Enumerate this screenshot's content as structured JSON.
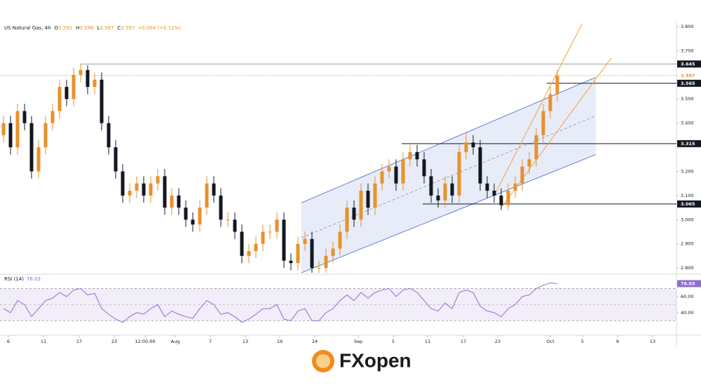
{
  "chart_data": {
    "type": "candlestick",
    "header": {
      "symbol": "US Natural Gas, 4h",
      "ohlc": [
        {
          "key": "O",
          "value": "3.592"
        },
        {
          "key": "H",
          "value": "3.598"
        },
        {
          "key": "L",
          "value": "3.587"
        },
        {
          "key": "C",
          "value": "3.597"
        }
      ],
      "change": "+0.004 (+0.11%)"
    },
    "up_color": "#e8912b",
    "down_color": "#131722",
    "xlim": [
      0,
      96.5
    ],
    "xticks": [
      {
        "value": 1.2,
        "label": "6"
      },
      {
        "value": 6.2,
        "label": "11"
      },
      {
        "value": 11.3,
        "label": "17"
      },
      {
        "value": 16.3,
        "label": "23"
      },
      {
        "value": 20.7,
        "label": "12:00:00"
      },
      {
        "value": 25,
        "label": "Aug"
      },
      {
        "value": 30,
        "label": "7"
      },
      {
        "value": 35,
        "label": "13"
      },
      {
        "value": 39.9,
        "label": "19"
      },
      {
        "value": 44.9,
        "label": "24"
      },
      {
        "value": 51.1,
        "label": "Sep"
      },
      {
        "value": 56.1,
        "label": "5"
      },
      {
        "value": 61,
        "label": "11"
      },
      {
        "value": 66.1,
        "label": "17"
      },
      {
        "value": 71,
        "label": "23"
      },
      {
        "value": 78.5,
        "label": "Oct"
      },
      {
        "value": 83.1,
        "label": "5"
      },
      {
        "value": 88.1,
        "label": "9"
      },
      {
        "value": 93.1,
        "label": "13"
      }
    ],
    "ylim": [
      2.777,
      3.823
    ],
    "yticks": [
      {
        "value": 3.8,
        "label": "3.800"
      },
      {
        "value": 3.7,
        "label": "3.700"
      },
      {
        "value": 3.5,
        "label": "3.500"
      },
      {
        "value": 3.4,
        "label": "3.400"
      },
      {
        "value": 3.2,
        "label": "3.200"
      },
      {
        "value": 3.1,
        "label": "3.100"
      },
      {
        "value": 3.0,
        "label": "3.000"
      },
      {
        "value": 2.9,
        "label": "2.900"
      },
      {
        "value": 2.8,
        "label": "2.800"
      }
    ],
    "candles": [
      [
        3.35,
        3.43,
        3.32,
        3.4
      ],
      [
        3.4,
        3.43,
        3.27,
        3.3
      ],
      [
        3.3,
        3.48,
        3.27,
        3.45
      ],
      [
        3.45,
        3.48,
        3.37,
        3.4
      ],
      [
        3.4,
        3.43,
        3.17,
        3.2
      ],
      [
        3.2,
        3.33,
        3.17,
        3.3
      ],
      [
        3.3,
        3.43,
        3.27,
        3.4
      ],
      [
        3.4,
        3.48,
        3.37,
        3.45
      ],
      [
        3.45,
        3.58,
        3.42,
        3.55
      ],
      [
        3.55,
        3.58,
        3.47,
        3.5
      ],
      [
        3.5,
        3.63,
        3.47,
        3.6
      ],
      [
        3.6,
        3.645,
        3.57,
        3.62
      ],
      [
        3.62,
        3.64,
        3.52,
        3.55
      ],
      [
        3.55,
        3.61,
        3.52,
        3.58
      ],
      [
        3.58,
        3.61,
        3.37,
        3.4
      ],
      [
        3.4,
        3.43,
        3.27,
        3.3
      ],
      [
        3.3,
        3.33,
        3.17,
        3.2
      ],
      [
        3.2,
        3.23,
        3.07,
        3.1
      ],
      [
        3.1,
        3.15,
        3.07,
        3.12
      ],
      [
        3.12,
        3.18,
        3.09,
        3.15
      ],
      [
        3.15,
        3.18,
        3.07,
        3.1
      ],
      [
        3.1,
        3.18,
        3.07,
        3.15
      ],
      [
        3.15,
        3.21,
        3.12,
        3.18
      ],
      [
        3.18,
        3.21,
        3.02,
        3.05
      ],
      [
        3.05,
        3.13,
        3.02,
        3.1
      ],
      [
        3.1,
        3.13,
        3.02,
        3.05
      ],
      [
        3.05,
        3.08,
        2.97,
        3.0
      ],
      [
        3.0,
        3.03,
        2.95,
        2.98
      ],
      [
        2.98,
        3.08,
        2.95,
        3.05
      ],
      [
        3.05,
        3.18,
        3.02,
        3.15
      ],
      [
        3.15,
        3.18,
        3.07,
        3.1
      ],
      [
        3.1,
        3.13,
        2.97,
        3.0
      ],
      [
        3.0,
        3.03,
        2.97,
        3.0
      ],
      [
        3.0,
        3.03,
        2.92,
        2.95
      ],
      [
        2.95,
        2.98,
        2.82,
        2.85
      ],
      [
        2.85,
        2.9,
        2.82,
        2.87
      ],
      [
        2.87,
        2.93,
        2.84,
        2.9
      ],
      [
        2.9,
        2.98,
        2.87,
        2.95
      ],
      [
        2.95,
        2.98,
        2.92,
        2.95
      ],
      [
        2.95,
        3.03,
        2.92,
        3.0
      ],
      [
        3.0,
        3.03,
        2.8,
        2.83
      ],
      [
        2.83,
        2.86,
        2.79,
        2.82
      ],
      [
        2.82,
        2.93,
        2.79,
        2.9
      ],
      [
        2.9,
        2.95,
        2.87,
        2.92
      ],
      [
        2.92,
        2.95,
        2.78,
        2.8
      ],
      [
        2.8,
        2.83,
        2.78,
        2.8
      ],
      [
        2.8,
        2.88,
        2.78,
        2.85
      ],
      [
        2.85,
        2.91,
        2.82,
        2.88
      ],
      [
        2.88,
        2.98,
        2.85,
        2.95
      ],
      [
        2.95,
        3.08,
        2.92,
        3.05
      ],
      [
        3.05,
        3.08,
        2.97,
        3.0
      ],
      [
        3.0,
        3.15,
        2.97,
        3.12
      ],
      [
        3.12,
        3.15,
        3.02,
        3.05
      ],
      [
        3.05,
        3.18,
        3.02,
        3.15
      ],
      [
        3.15,
        3.23,
        3.12,
        3.2
      ],
      [
        3.2,
        3.25,
        3.17,
        3.22
      ],
      [
        3.22,
        3.25,
        3.12,
        3.15
      ],
      [
        3.15,
        3.28,
        3.12,
        3.25
      ],
      [
        3.25,
        3.31,
        3.22,
        3.28
      ],
      [
        3.28,
        3.31,
        3.22,
        3.25
      ],
      [
        3.25,
        3.28,
        3.15,
        3.18
      ],
      [
        3.18,
        3.21,
        3.07,
        3.1
      ],
      [
        3.1,
        3.13,
        3.05,
        3.08
      ],
      [
        3.08,
        3.18,
        3.05,
        3.15
      ],
      [
        3.15,
        3.18,
        3.07,
        3.1
      ],
      [
        3.1,
        3.31,
        3.07,
        3.28
      ],
      [
        3.28,
        3.36,
        3.25,
        3.32
      ],
      [
        3.32,
        3.35,
        3.27,
        3.3
      ],
      [
        3.3,
        3.33,
        3.12,
        3.15
      ],
      [
        3.15,
        3.18,
        3.09,
        3.12
      ],
      [
        3.12,
        3.15,
        3.07,
        3.1
      ],
      [
        3.1,
        3.13,
        3.04,
        3.06
      ],
      [
        3.06,
        3.15,
        3.04,
        3.12
      ],
      [
        3.12,
        3.18,
        3.09,
        3.15
      ],
      [
        3.15,
        3.25,
        3.12,
        3.22
      ],
      [
        3.22,
        3.28,
        3.19,
        3.25
      ],
      [
        3.25,
        3.38,
        3.22,
        3.35
      ],
      [
        3.35,
        3.48,
        3.32,
        3.45
      ],
      [
        3.45,
        3.55,
        3.42,
        3.52
      ],
      [
        3.52,
        3.62,
        3.49,
        3.597
      ]
    ],
    "current_price": {
      "value": 3.597,
      "label": "3.597",
      "color": "#e8912b"
    },
    "levels": [
      {
        "value": 3.645,
        "label": "3.645",
        "from": 11.5,
        "color": "#9a9a9a"
      },
      {
        "value": 3.565,
        "label": "3.565",
        "from": 78,
        "color": "#131722"
      },
      {
        "value": 3.315,
        "label": "3.315",
        "from": 57.3,
        "color": "#131722"
      },
      {
        "value": 3.065,
        "label": "3.065",
        "from": 60.3,
        "color": "#131722"
      }
    ],
    "channel": {
      "x": [
        43,
        85
      ],
      "upper": [
        3.07,
        3.59
      ],
      "lower": [
        2.78,
        3.27
      ],
      "color": "#5b7fd1"
    },
    "trendlines": [
      {
        "x": [
          70.5,
          83
        ],
        "y": [
          3.1,
          3.81
        ],
        "color": "#f0a040"
      },
      {
        "x": [
          71.5,
          87.2
        ],
        "y": [
          3.05,
          3.67
        ],
        "color": "#f0a040"
      }
    ],
    "rsi": {
      "name": "RSI (14)",
      "color": "#8e6fd1",
      "values": [
        45,
        40,
        55,
        50,
        35,
        45,
        55,
        58,
        65,
        60,
        68,
        70,
        62,
        64,
        45,
        38,
        32,
        28,
        35,
        40,
        38,
        45,
        50,
        35,
        42,
        38,
        35,
        33,
        45,
        55,
        50,
        38,
        40,
        35,
        28,
        32,
        38,
        45,
        45,
        50,
        32,
        30,
        42,
        45,
        30,
        30,
        40,
        45,
        55,
        62,
        55,
        65,
        58,
        65,
        68,
        70,
        60,
        68,
        70,
        65,
        55,
        45,
        42,
        52,
        45,
        65,
        68,
        65,
        48,
        42,
        40,
        35,
        45,
        50,
        60,
        62,
        70,
        74,
        77,
        76.03
      ],
      "ylim": [
        12,
        86
      ],
      "yticks": [
        {
          "value": 60,
          "label": "60.00"
        },
        {
          "value": 40,
          "label": "40.00"
        }
      ],
      "bands": [
        30,
        70
      ],
      "mid": 50
    },
    "brand": "FXopen"
  }
}
